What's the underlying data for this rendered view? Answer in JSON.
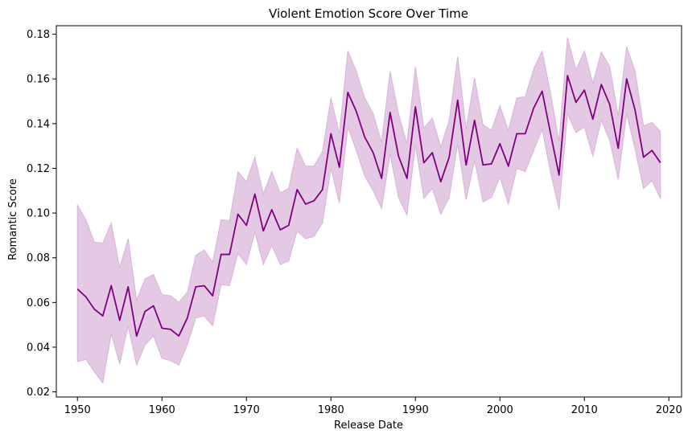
{
  "chart_data": {
    "type": "line",
    "title": "Violent Emotion Score Over Time",
    "xlabel": "Release Date",
    "ylabel": "Romantic Score",
    "xlim": [
      1947.5,
      2021.5
    ],
    "ylim": [
      0.0177,
      0.1838
    ],
    "x_ticks": [
      1950,
      1960,
      1970,
      1980,
      1990,
      2000,
      2010,
      2020
    ],
    "y_ticks": [
      "0.02",
      "0.04",
      "0.06",
      "0.08",
      "0.10",
      "0.12",
      "0.14",
      "0.16",
      "0.18"
    ],
    "grid": false,
    "line_color": "#800080",
    "band_color": "#e3c9e3",
    "band_edge_color": "#d9b3d9",
    "x": [
      1950,
      1951,
      1952,
      1953,
      1954,
      1955,
      1956,
      1957,
      1958,
      1959,
      1960,
      1961,
      1962,
      1963,
      1964,
      1965,
      1966,
      1967,
      1968,
      1969,
      1970,
      1971,
      1972,
      1973,
      1974,
      1975,
      1976,
      1977,
      1978,
      1979,
      1980,
      1981,
      1982,
      1983,
      1984,
      1985,
      1986,
      1987,
      1988,
      1989,
      1990,
      1991,
      1992,
      1993,
      1994,
      1995,
      1996,
      1997,
      1998,
      1999,
      2000,
      2001,
      2002,
      2003,
      2004,
      2005,
      2006,
      2007,
      2008,
      2009,
      2010,
      2011,
      2012,
      2013,
      2014,
      2015,
      2016,
      2017,
      2018,
      2019
    ],
    "y": [
      0.066,
      0.0625,
      0.057,
      0.054,
      0.0675,
      0.052,
      0.067,
      0.045,
      0.056,
      0.0585,
      0.0485,
      0.048,
      0.045,
      0.053,
      0.067,
      0.0675,
      0.063,
      0.0815,
      0.0815,
      0.0995,
      0.0945,
      0.1085,
      0.092,
      0.1015,
      0.0925,
      0.0945,
      0.1105,
      0.104,
      0.1055,
      0.1105,
      0.1355,
      0.1205,
      0.154,
      0.1455,
      0.134,
      0.127,
      0.1155,
      0.145,
      0.1255,
      0.1155,
      0.1475,
      0.1225,
      0.127,
      0.114,
      0.125,
      0.1505,
      0.1215,
      0.1415,
      0.1215,
      0.122,
      0.131,
      0.121,
      0.1355,
      0.1355,
      0.147,
      0.1545,
      0.1355,
      0.117,
      0.1615,
      0.1495,
      0.155,
      0.142,
      0.1575,
      0.1485,
      0.129,
      0.16,
      0.146,
      0.125,
      0.128,
      0.1225
    ],
    "y_lower": [
      0.0335,
      0.0345,
      0.029,
      0.024,
      0.046,
      0.0325,
      0.0495,
      0.032,
      0.041,
      0.045,
      0.035,
      0.034,
      0.032,
      0.041,
      0.053,
      0.054,
      0.0495,
      0.068,
      0.0675,
      0.082,
      0.077,
      0.0915,
      0.077,
      0.0855,
      0.077,
      0.0785,
      0.092,
      0.0885,
      0.0895,
      0.0955,
      0.12,
      0.1045,
      0.1385,
      0.128,
      0.1165,
      0.11,
      0.102,
      0.1265,
      0.107,
      0.099,
      0.1305,
      0.1065,
      0.111,
      0.0995,
      0.107,
      0.131,
      0.106,
      0.1235,
      0.105,
      0.107,
      0.116,
      0.104,
      0.12,
      0.1185,
      0.128,
      0.1375,
      0.118,
      0.1015,
      0.1445,
      0.136,
      0.1385,
      0.1255,
      0.1415,
      0.1325,
      0.115,
      0.1445,
      0.1285,
      0.111,
      0.1145,
      0.1065
    ],
    "y_upper": [
      0.1035,
      0.097,
      0.087,
      0.0865,
      0.0955,
      0.0755,
      0.0885,
      0.061,
      0.0705,
      0.0725,
      0.0635,
      0.063,
      0.06,
      0.0645,
      0.081,
      0.0835,
      0.078,
      0.097,
      0.0965,
      0.1185,
      0.114,
      0.125,
      0.1085,
      0.1185,
      0.109,
      0.111,
      0.129,
      0.121,
      0.121,
      0.1275,
      0.1515,
      0.1355,
      0.1725,
      0.1635,
      0.1515,
      0.1445,
      0.1315,
      0.1635,
      0.1445,
      0.131,
      0.1655,
      0.138,
      0.1425,
      0.1295,
      0.1415,
      0.17,
      0.1375,
      0.1605,
      0.1395,
      0.137,
      0.148,
      0.137,
      0.1515,
      0.152,
      0.1645,
      0.1725,
      0.1535,
      0.132,
      0.1785,
      0.164,
      0.1725,
      0.158,
      0.172,
      0.1655,
      0.1435,
      0.1745,
      0.1635,
      0.139,
      0.1405,
      0.1365
    ]
  }
}
